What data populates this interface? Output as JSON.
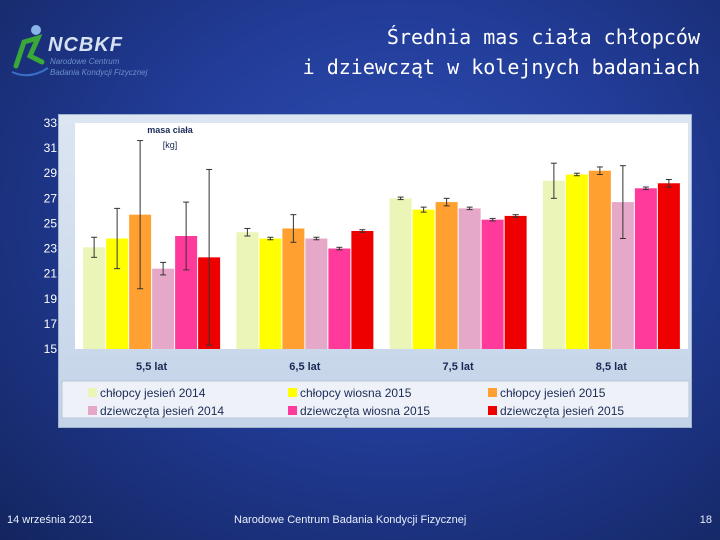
{
  "logo": {
    "name": "NCBKF",
    "subtitle_line1": "Narodowe Centrum",
    "subtitle_line2": "Badania Kondycji Fizycznej"
  },
  "title": {
    "line1": "Średnia mas ciała chłopców",
    "line2": "i dziewcząt w kolejnych badaniach"
  },
  "chart_data": {
    "type": "bar",
    "ylabel_line1": "masa ciała",
    "ylabel_line2": "[kg]",
    "ylim": [
      15,
      33
    ],
    "yticks": [
      15,
      17,
      19,
      21,
      23,
      25,
      27,
      29,
      31,
      33
    ],
    "ytick_labels": [
      "15",
      "17",
      "19",
      "21",
      "23",
      "25",
      "27",
      "29",
      "31",
      "33"
    ],
    "categories": [
      "5,5 lat",
      "6,5 lat",
      "7,5 lat",
      "8,5 lat"
    ],
    "legend_position": "bottom",
    "series": [
      {
        "name": "chłopcy jesień 2014",
        "color": "#ecf5b8",
        "values": [
          23.1,
          24.3,
          27.0,
          28.4
        ],
        "errors": [
          0.8,
          0.3,
          0.1,
          1.4
        ]
      },
      {
        "name": "chłopcy wiosna 2015",
        "color": "#ffff00",
        "values": [
          23.8,
          23.8,
          26.1,
          28.9
        ],
        "errors": [
          2.4,
          0.1,
          0.2,
          0.1
        ]
      },
      {
        "name": "chłopcy jesień 2015",
        "color": "#ffa030",
        "values": [
          25.7,
          24.6,
          26.7,
          29.2
        ],
        "errors": [
          5.9,
          1.1,
          0.3,
          0.3
        ]
      },
      {
        "name": "dziewczęta jesień 2014",
        "color": "#e6a8c8",
        "values": [
          21.4,
          23.8,
          26.2,
          26.7
        ],
        "errors": [
          0.5,
          0.1,
          0.1,
          2.9
        ]
      },
      {
        "name": "dziewczęta wiosna 2015",
        "color": "#ff3a9a",
        "values": [
          24.0,
          23.0,
          25.3,
          27.8
        ],
        "errors": [
          2.7,
          0.1,
          0.1,
          0.1
        ]
      },
      {
        "name": "dziewczęta jesień 2015",
        "color": "#ee0000",
        "values": [
          22.3,
          24.4,
          25.6,
          28.2
        ],
        "errors": [
          7.0,
          0.1,
          0.1,
          0.3
        ]
      }
    ]
  },
  "footer": {
    "date": "14 września 2021",
    "center": "Narodowe Centrum Badania Kondycji Fizycznej",
    "page": "18"
  }
}
